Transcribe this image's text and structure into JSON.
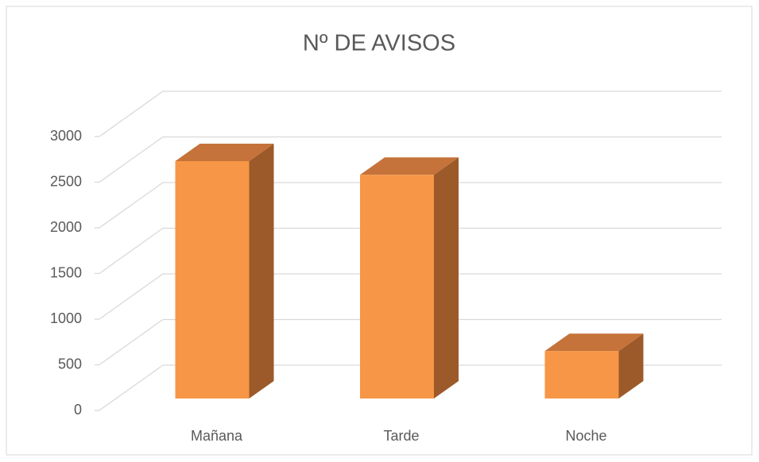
{
  "chart_data": {
    "type": "bar3d",
    "title": "Nº DE AVISOS",
    "categories": [
      "Mañana",
      "Tarde",
      "Noche"
    ],
    "values": [
      2600,
      2450,
      520
    ],
    "color": "#f79646",
    "ylim": [
      0,
      3000
    ],
    "yticks": [
      0,
      500,
      1000,
      1500,
      2000,
      2500,
      3000
    ],
    "grid": true
  }
}
